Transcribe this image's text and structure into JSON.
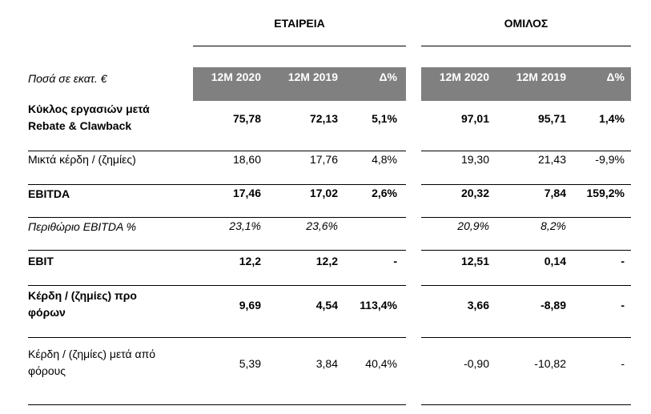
{
  "groups": {
    "company": "ΕΤΑΙΡΕΙΑ",
    "group": "ΟΜΙΛΟΣ"
  },
  "units_label": "Ποσά σε εκατ. €",
  "columns": {
    "company": [
      "12M 2020",
      "12M 2019",
      "Δ%"
    ],
    "group": [
      "12M 2020",
      "12M 2019",
      "Δ%"
    ]
  },
  "rows": [
    {
      "label": "Κύκλος εργασιών μετά Rebate & Clawback",
      "style": "bold",
      "company": [
        "75,78",
        "72,13",
        "5,1%"
      ],
      "group": [
        "97,01",
        "95,71",
        "1,4%"
      ]
    },
    {
      "label": "Μικτά κέρδη / (ζημίες)",
      "style": "normal",
      "company": [
        "18,60",
        "17,76",
        "4,8%"
      ],
      "group": [
        "19,30",
        "21,43",
        "-9,9%"
      ]
    },
    {
      "label": "EBITDA",
      "style": "bold",
      "company": [
        "17,46",
        "17,02",
        "2,6%"
      ],
      "group": [
        "20,32",
        "7,84",
        "159,2%"
      ]
    },
    {
      "label": "Περιθώριο EBITDA %",
      "style": "italic",
      "company": [
        "23,1%",
        "23,6%",
        ""
      ],
      "group": [
        "20,9%",
        "8,2%",
        ""
      ]
    },
    {
      "label": "EBIT",
      "style": "bold",
      "company": [
        "12,2",
        "12,2",
        "-"
      ],
      "group": [
        "12,51",
        "0,14",
        "-"
      ]
    },
    {
      "label": "Κέρδη / (ζημίες) προ φόρων",
      "style": "bold",
      "company": [
        "9,69",
        "4,54",
        "113,4%"
      ],
      "group": [
        "3,66",
        "-8,89",
        "-"
      ]
    },
    {
      "label": "Κέρδη / (ζημίες) μετά από φόρους",
      "style": "normal",
      "company": [
        "5,39",
        "3,84",
        "40,4%"
      ],
      "group": [
        "-0,90",
        "-10,82",
        "-"
      ]
    }
  ]
}
